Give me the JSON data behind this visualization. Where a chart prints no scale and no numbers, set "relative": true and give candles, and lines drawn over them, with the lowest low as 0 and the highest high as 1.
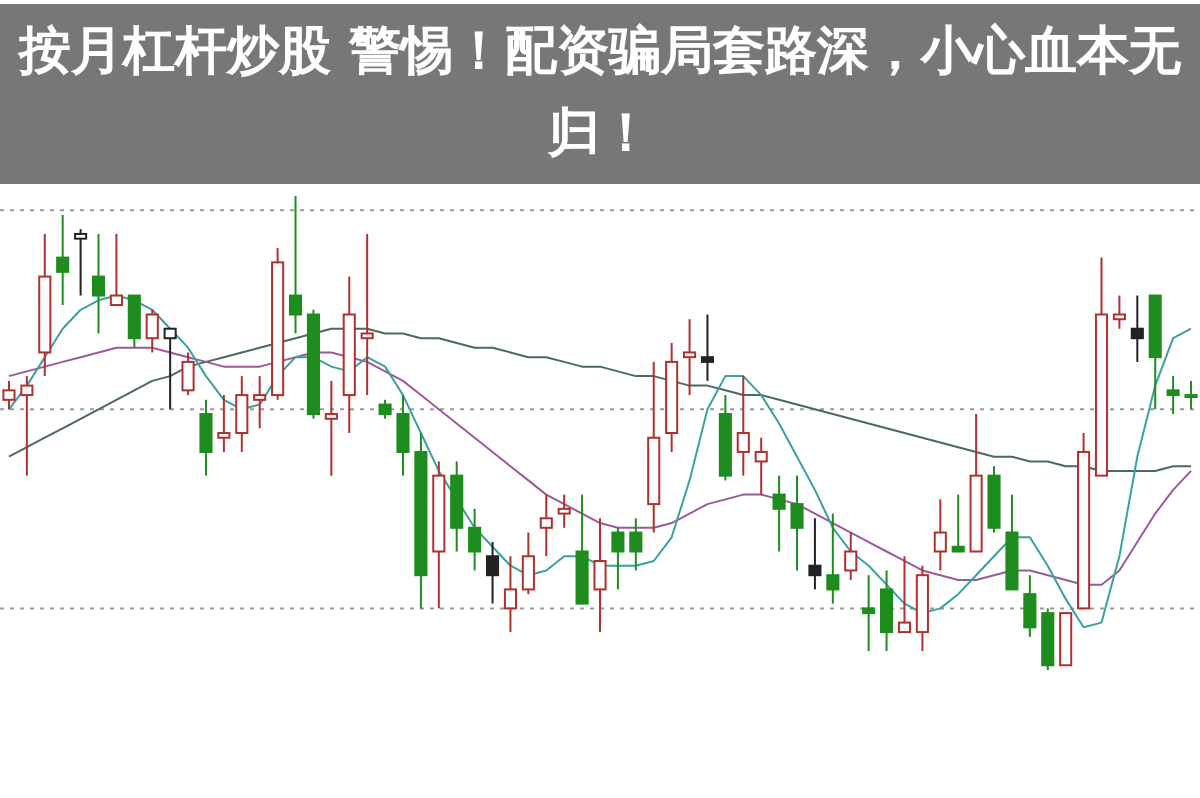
{
  "chart_data": {
    "type": "candlestick",
    "title": "按月杠杆炒股 警惕！配资骗局套路深，小心血本无归！",
    "relative": true,
    "categories": [
      null,
      null,
      null,
      null,
      null,
      null,
      null,
      null,
      null,
      null,
      null,
      null,
      null,
      null,
      null,
      null,
      null,
      null,
      null,
      null,
      null,
      null,
      null,
      null,
      null,
      null,
      null,
      null,
      null,
      null,
      null,
      null,
      null,
      null,
      null,
      null,
      null,
      null,
      null,
      null,
      null,
      null,
      null,
      null,
      null,
      null,
      null,
      null,
      null,
      null,
      null,
      null,
      null,
      null,
      null,
      null,
      null,
      null,
      null,
      null,
      null,
      null,
      null,
      null,
      null,
      null,
      null
    ],
    "ohlc": [
      [
        0.57,
        0.61,
        0.55,
        0.59
      ],
      [
        0.58,
        0.62,
        0.41,
        0.6
      ],
      [
        0.67,
        0.92,
        0.62,
        0.83
      ],
      [
        0.87,
        0.96,
        0.77,
        0.84
      ],
      [
        0.91,
        0.93,
        0.79,
        0.92
      ],
      [
        0.83,
        0.92,
        0.71,
        0.79
      ],
      [
        0.77,
        0.92,
        0.77,
        0.79
      ],
      [
        0.79,
        0.79,
        0.68,
        0.7
      ],
      [
        0.7,
        0.76,
        0.67,
        0.75
      ],
      [
        0.7,
        0.72,
        0.55,
        0.72
      ],
      [
        0.59,
        0.67,
        0.58,
        0.65
      ],
      [
        0.54,
        0.57,
        0.41,
        0.46
      ],
      [
        0.49,
        0.58,
        0.46,
        0.5
      ],
      [
        0.5,
        0.62,
        0.46,
        0.58
      ],
      [
        0.57,
        0.62,
        0.51,
        0.58
      ],
      [
        0.58,
        0.89,
        0.57,
        0.86
      ],
      [
        0.79,
        1.0,
        0.71,
        0.75
      ],
      [
        0.75,
        0.76,
        0.53,
        0.54
      ],
      [
        0.53,
        0.61,
        0.41,
        0.54
      ],
      [
        0.58,
        0.83,
        0.5,
        0.75
      ],
      [
        0.7,
        0.92,
        0.58,
        0.71
      ],
      [
        0.56,
        0.57,
        0.53,
        0.54
      ],
      [
        0.54,
        0.58,
        0.41,
        0.46
      ],
      [
        0.46,
        0.5,
        0.13,
        0.2
      ],
      [
        0.25,
        0.44,
        0.13,
        0.41
      ],
      [
        0.41,
        0.44,
        0.25,
        0.3
      ],
      [
        0.3,
        0.34,
        0.21,
        0.25
      ],
      [
        0.24,
        0.27,
        0.14,
        0.2
      ],
      [
        0.13,
        0.24,
        0.08,
        0.17
      ],
      [
        0.17,
        0.29,
        0.16,
        0.24
      ],
      [
        0.3,
        0.37,
        0.24,
        0.32
      ],
      [
        0.33,
        0.37,
        0.3,
        0.34
      ],
      [
        0.25,
        0.37,
        0.14,
        0.14
      ],
      [
        0.17,
        0.32,
        0.08,
        0.23
      ],
      [
        0.29,
        0.3,
        0.17,
        0.25
      ],
      [
        0.29,
        0.32,
        0.21,
        0.25
      ],
      [
        0.35,
        0.65,
        0.29,
        0.49
      ],
      [
        0.5,
        0.69,
        0.46,
        0.65
      ],
      [
        0.66,
        0.74,
        0.58,
        0.67
      ],
      [
        0.66,
        0.75,
        0.61,
        0.65
      ],
      [
        0.54,
        0.58,
        0.4,
        0.41
      ],
      [
        0.46,
        0.62,
        0.41,
        0.5
      ],
      [
        0.44,
        0.49,
        0.37,
        0.46
      ],
      [
        0.37,
        0.41,
        0.25,
        0.34
      ],
      [
        0.35,
        0.41,
        0.21,
        0.3
      ],
      [
        0.22,
        0.32,
        0.17,
        0.2
      ],
      [
        0.2,
        0.33,
        0.14,
        0.17
      ],
      [
        0.21,
        0.29,
        0.19,
        0.25
      ],
      [
        0.13,
        0.2,
        0.04,
        0.12
      ],
      [
        0.17,
        0.21,
        0.04,
        0.08
      ],
      [
        0.08,
        0.24,
        0.08,
        0.1
      ],
      [
        0.08,
        0.22,
        0.04,
        0.2
      ],
      [
        0.25,
        0.36,
        0.21,
        0.29
      ],
      [
        0.26,
        0.37,
        0.25,
        0.25
      ],
      [
        0.25,
        0.54,
        0.25,
        0.41
      ],
      [
        0.41,
        0.43,
        0.29,
        0.3
      ],
      [
        0.29,
        0.37,
        0.17,
        0.17
      ],
      [
        0.16,
        0.2,
        0.07,
        0.09
      ],
      [
        0.12,
        0.13,
        0,
        0.01
      ],
      [
        0.01,
        0.12,
        0.01,
        0.12
      ],
      [
        0.13,
        0.5,
        0.13,
        0.46
      ],
      [
        0.41,
        0.87,
        0.41,
        0.75
      ],
      [
        0.74,
        0.79,
        0.72,
        0.75
      ],
      [
        0.72,
        0.79,
        0.65,
        0.7
      ],
      [
        0.79,
        0.79,
        0.55,
        0.66
      ],
      [
        0.59,
        0.62,
        0.54,
        0.58
      ],
      [
        0.58,
        0.61,
        0.55,
        0.58
      ]
    ],
    "series": [
      {
        "type": "line",
        "color": "#4a6a5a",
        "values": [
          0.45,
          0.47,
          0.49,
          0.51,
          0.53,
          0.55,
          0.57,
          0.59,
          0.61,
          0.62,
          0.64,
          0.65,
          0.66,
          0.67,
          0.68,
          0.69,
          0.7,
          0.71,
          0.72,
          0.72,
          0.72,
          0.71,
          0.71,
          0.7,
          0.7,
          0.69,
          0.68,
          0.68,
          0.67,
          0.66,
          0.66,
          0.65,
          0.64,
          0.64,
          0.63,
          0.62,
          0.62,
          0.61,
          0.6,
          0.6,
          0.59,
          0.58,
          0.58,
          0.57,
          0.56,
          0.55,
          0.54,
          0.53,
          0.52,
          0.51,
          0.5,
          0.49,
          0.48,
          0.47,
          0.46,
          0.45,
          0.45,
          0.44,
          0.44,
          0.43,
          0.43,
          0.42,
          0.42,
          0.42,
          0.42,
          0.43,
          0.43
        ]
      },
      {
        "type": "line",
        "color": "#9a5a9a",
        "values": [
          0.62,
          0.63,
          0.64,
          0.65,
          0.66,
          0.67,
          0.68,
          0.68,
          0.68,
          0.67,
          0.66,
          0.65,
          0.64,
          0.64,
          0.64,
          0.65,
          0.66,
          0.67,
          0.67,
          0.66,
          0.65,
          0.63,
          0.61,
          0.58,
          0.55,
          0.52,
          0.49,
          0.46,
          0.43,
          0.4,
          0.37,
          0.35,
          0.33,
          0.31,
          0.3,
          0.3,
          0.3,
          0.31,
          0.33,
          0.35,
          0.36,
          0.37,
          0.37,
          0.36,
          0.35,
          0.33,
          0.31,
          0.29,
          0.27,
          0.25,
          0.23,
          0.21,
          0.2,
          0.19,
          0.19,
          0.2,
          0.21,
          0.21,
          0.2,
          0.19,
          0.18,
          0.18,
          0.21,
          0.27,
          0.33,
          0.38,
          0.42
        ]
      },
      {
        "type": "line",
        "color": "#3aa0a0",
        "values": [
          0.55,
          0.6,
          0.66,
          0.72,
          0.76,
          0.78,
          0.79,
          0.78,
          0.76,
          0.72,
          0.68,
          0.62,
          0.57,
          0.55,
          0.56,
          0.62,
          0.66,
          0.66,
          0.64,
          0.63,
          0.66,
          0.64,
          0.58,
          0.5,
          0.42,
          0.36,
          0.3,
          0.26,
          0.22,
          0.2,
          0.21,
          0.24,
          0.24,
          0.22,
          0.22,
          0.22,
          0.23,
          0.28,
          0.4,
          0.55,
          0.62,
          0.62,
          0.58,
          0.52,
          0.45,
          0.38,
          0.3,
          0.25,
          0.22,
          0.18,
          0.14,
          0.12,
          0.13,
          0.16,
          0.2,
          0.24,
          0.28,
          0.28,
          0.22,
          0.15,
          0.09,
          0.1,
          0.24,
          0.45,
          0.6,
          0.7,
          0.72
        ]
      }
    ],
    "colors": [
      "#b03030",
      "#b03030",
      "#b03030",
      "#1e8c1e",
      "#222222",
      "#1e8c1e",
      "#b03030",
      "#1e8c1e",
      "#b03030",
      "#222222",
      "#b03030",
      "#1e8c1e",
      "#b03030",
      "#b03030",
      "#b03030",
      "#b03030",
      "#1e8c1e",
      "#1e8c1e",
      "#b03030",
      "#b03030",
      "#b03030",
      "#1e8c1e",
      "#1e8c1e",
      "#1e8c1e",
      "#b03030",
      "#1e8c1e",
      "#1e8c1e",
      "#222222",
      "#b03030",
      "#b03030",
      "#b03030",
      "#b03030",
      "#1e8c1e",
      "#b03030",
      "#1e8c1e",
      "#1e8c1e",
      "#b03030",
      "#b03030",
      "#b03030",
      "#222222",
      "#1e8c1e",
      "#b03030",
      "#b03030",
      "#1e8c1e",
      "#1e8c1e",
      "#222222",
      "#1e8c1e",
      "#b03030",
      "#1e8c1e",
      "#1e8c1e",
      "#b03030",
      "#b03030",
      "#b03030",
      "#1e8c1e",
      "#b03030",
      "#1e8c1e",
      "#1e8c1e",
      "#1e8c1e",
      "#1e8c1e",
      "#b03030",
      "#b03030",
      "#b03030",
      "#b03030",
      "#222222",
      "#1e8c1e",
      "#1e8c1e",
      "#1e8c1e"
    ],
    "ref_lines": [
      {
        "axis": "y",
        "value": 0.97,
        "color": "#999999",
        "line_style": "dotted"
      },
      {
        "axis": "y",
        "value": 0.55,
        "color": "#999999",
        "line_style": "dotted"
      },
      {
        "axis": "y",
        "value": 0.13,
        "color": "#999999",
        "line_style": "dotted"
      }
    ]
  }
}
